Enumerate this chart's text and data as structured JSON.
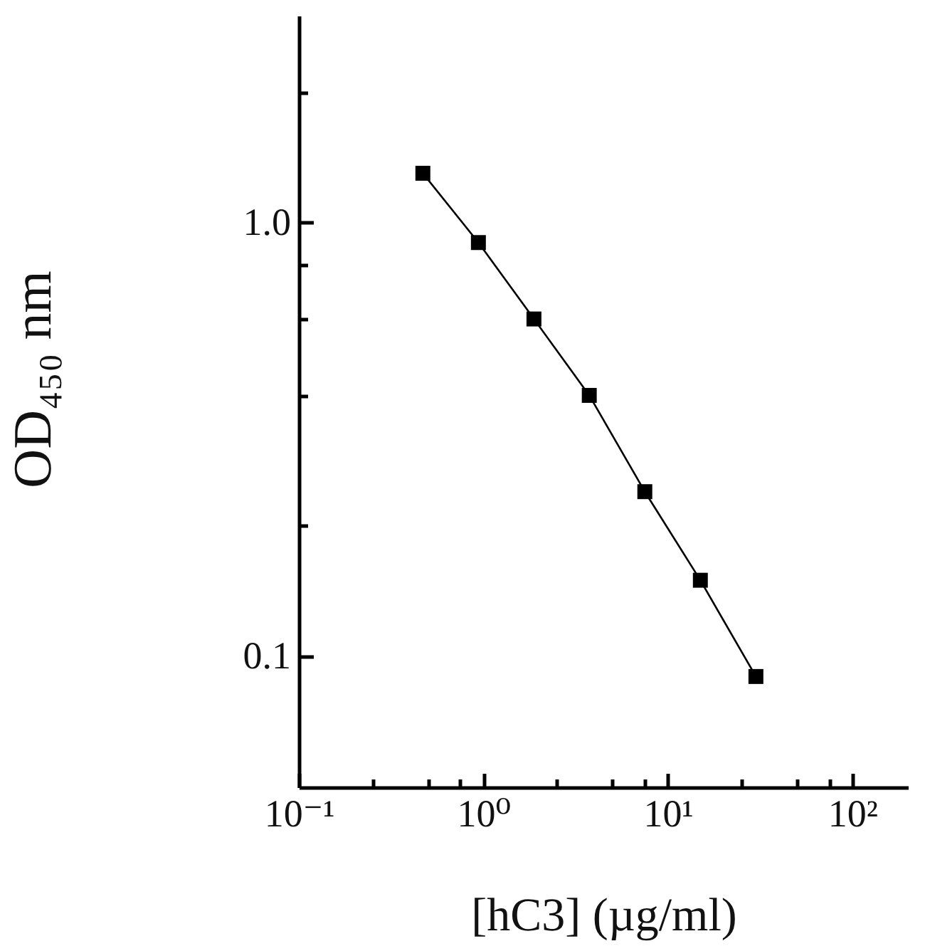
{
  "chart_data": {
    "type": "line",
    "xlabel": "[hC3] (µg/ml)",
    "ylabel": "OD₄₅₀ nm",
    "x": [
      0.47,
      0.94,
      1.88,
      3.75,
      7.5,
      15,
      30
    ],
    "series": [
      {
        "color": "#000000",
        "values": [
          1.3,
          0.9,
          0.6,
          0.4,
          0.24,
          0.15,
          0.09
        ]
      }
    ],
    "log": "xy",
    "xlim": [
      0.1,
      200
    ],
    "ylim": [
      0.05,
      3
    ],
    "xticks": [
      {
        "value": 0.1,
        "label": "10⁻¹"
      },
      {
        "value": 0.25,
        "label": null
      },
      {
        "value": 0.5,
        "label": null
      },
      {
        "value": 0.75,
        "label": null
      },
      {
        "value": 1,
        "label": "10⁰"
      },
      {
        "value": 2.5,
        "label": null
      },
      {
        "value": 5,
        "label": null
      },
      {
        "value": 7.5,
        "label": null
      },
      {
        "value": 10,
        "label": "10¹"
      },
      {
        "value": 25,
        "label": null
      },
      {
        "value": 50,
        "label": null
      },
      {
        "value": 75,
        "label": null
      },
      {
        "value": 100,
        "label": "10²"
      }
    ],
    "yticks": [
      0.1,
      {
        "value": 0.2,
        "label": null
      },
      {
        "value": 0.4,
        "label": null
      },
      {
        "value": 0.6,
        "label": null
      },
      {
        "value": 0.8,
        "label": null
      },
      {
        "value": 1,
        "label": "1.0"
      },
      {
        "value": 2,
        "label": null
      }
    ],
    "marker": "square",
    "line_style": "solid"
  }
}
